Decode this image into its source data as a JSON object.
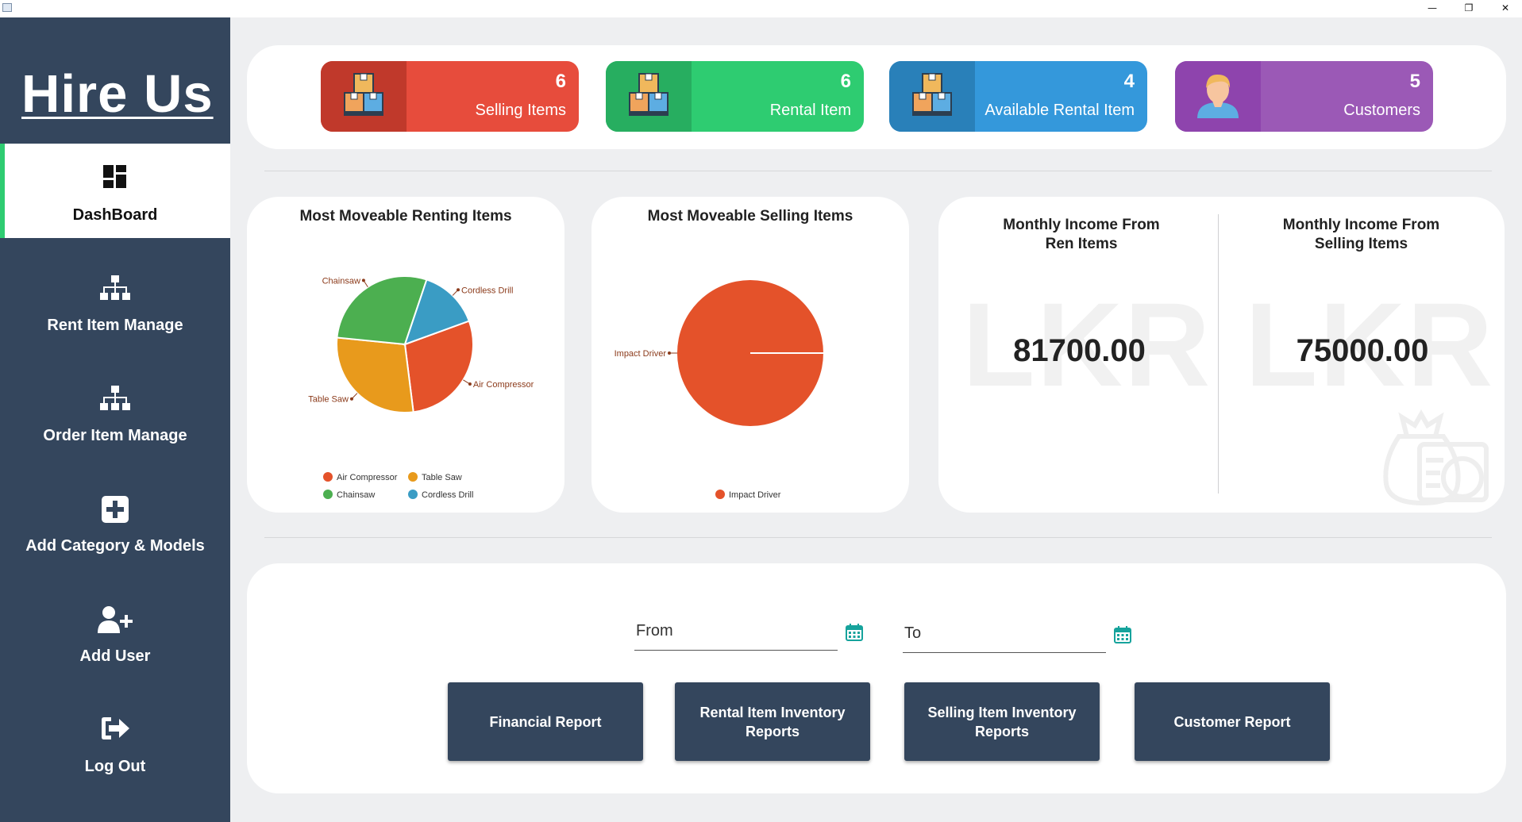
{
  "window": {
    "minimize_glyph": "—",
    "maximize_glyph": "❐",
    "close_glyph": "✕"
  },
  "sidebar": {
    "logo": "Hire Us",
    "items": [
      {
        "label": "DashBoard",
        "icon": "dashboard-icon",
        "active": true
      },
      {
        "label": "Rent Item Manage",
        "icon": "sitemap-icon"
      },
      {
        "label": "Order Item Manage",
        "icon": "sitemap-icon"
      },
      {
        "label": "Add Category & Models",
        "icon": "plus-square-icon"
      },
      {
        "label": "Add User",
        "icon": "user-plus-icon"
      },
      {
        "label": "Log Out",
        "icon": "sign-out-icon"
      }
    ],
    "active_color": "#2ecc71",
    "bg_color": "#34465d"
  },
  "stats": [
    {
      "value": "6",
      "label": "Selling Items",
      "icon": "boxes-icon",
      "color": "#e74c3c",
      "dark": "#c0392b"
    },
    {
      "value": "6",
      "label": "Rental Item",
      "icon": "boxes-icon",
      "color": "#2ecc71",
      "dark": "#27ae60"
    },
    {
      "value": "4",
      "label": "Available Rental Item",
      "icon": "boxes-icon",
      "color": "#3498db",
      "dark": "#2980b9"
    },
    {
      "value": "5",
      "label": "Customers",
      "icon": "customer-avatar-icon",
      "color": "#9b59b6",
      "dark": "#8e44ad"
    }
  ],
  "chart_data": [
    {
      "type": "pie",
      "title": "Most Moveable Renting Items",
      "categories": [
        "Air Compressor",
        "Table Saw",
        "Chainsaw",
        "Cordless Drill"
      ],
      "values": [
        2,
        2,
        2,
        1
      ],
      "colors": [
        "#e4522a",
        "#e89a1c",
        "#4caf50",
        "#3a9cc4"
      ],
      "legend": "bottom"
    },
    {
      "type": "pie",
      "title": "Most Moveable Selling Items",
      "categories": [
        "Impact Driver"
      ],
      "values": [
        1
      ],
      "colors": [
        "#e4522a"
      ],
      "legend": "bottom"
    }
  ],
  "income": {
    "rent_title_line1": "Monthly Income From",
    "rent_title_line2": "Ren Items",
    "rent_value": "81700.00",
    "sell_title_line1": "Monthly Income From",
    "sell_title_line2": "Selling Items",
    "sell_value": "75000.00",
    "watermark": "LKR",
    "watermark_icon": "money-bag-icon"
  },
  "reports": {
    "from_label": "From",
    "to_label": "To",
    "buttons": [
      {
        "label": "Financial Report"
      },
      {
        "label_line1": "Rental Item Inventory",
        "label_line2": "Reports"
      },
      {
        "label_line1": "Selling Item Inventory",
        "label_line2": "Reports"
      },
      {
        "label": "Customer Report"
      }
    ]
  }
}
